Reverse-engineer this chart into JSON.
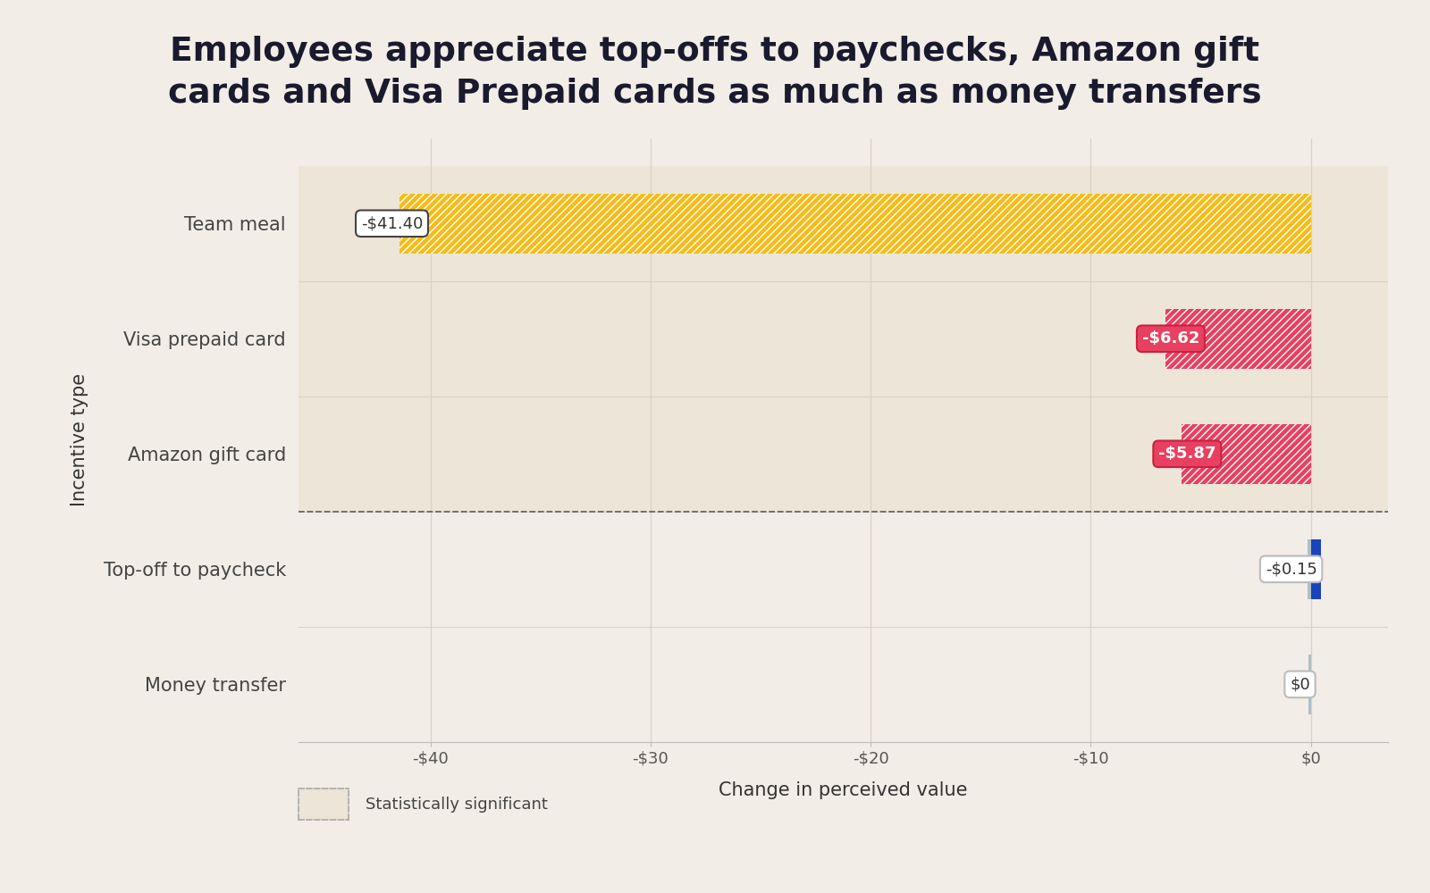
{
  "title_line1": "Employees appreciate top-offs to paychecks, Amazon gift",
  "title_line2": "cards and Visa Prepaid cards as much as money transfers",
  "categories": [
    "Money transfer",
    "Top-off to paycheck",
    "Amazon gift card",
    "Visa prepaid card",
    "Team meal"
  ],
  "values": [
    0.0,
    -0.15,
    -5.87,
    -6.62,
    -41.4
  ],
  "bar_colors": [
    "#b0bec5",
    "#b0bec5",
    "#e84060",
    "#e84060",
    "#f5bc1a"
  ],
  "label_texts": [
    "$0",
    "-$0.15",
    "-$5.87",
    "-$6.62",
    "-$41.40"
  ],
  "label_box_facecolors": [
    "#ffffff",
    "#ffffff",
    "#e84060",
    "#e84060",
    "#ffffff"
  ],
  "label_box_edgecolors": [
    "#bbbbbb",
    "#bbbbbb",
    "#cc2040",
    "#cc2040",
    "#444444"
  ],
  "label_text_colors": [
    "#333333",
    "#333333",
    "#ffffff",
    "#ffffff",
    "#333333"
  ],
  "label_fontweights": [
    "normal",
    "normal",
    "bold",
    "bold",
    "normal"
  ],
  "xlabel": "Change in perceived value",
  "ylabel": "Incentive type",
  "xlim": [
    -46,
    3.5
  ],
  "xticks": [
    -40,
    -30,
    -20,
    -10,
    0
  ],
  "xtick_labels": [
    "-$40",
    "-$30",
    "-$20",
    "-$10",
    "$0"
  ],
  "background_color": "#f2ede6",
  "plot_bg_color": "#f2ede6",
  "significant_bg": "#ece5d8",
  "significant_rows": [
    2,
    3,
    4
  ],
  "grid_color": "#d8d2ca",
  "title_fontsize": 27,
  "axis_label_fontsize": 15,
  "tick_fontsize": 13,
  "label_fontsize": 13,
  "bar_height": 0.52,
  "dashed_line_y": 1.5,
  "blue_accent_color": "#1a44bb",
  "legend_label": "Statistically significant",
  "legend_box_color": "#ece5d8",
  "legend_box_edge_color": "#aaaaaa"
}
